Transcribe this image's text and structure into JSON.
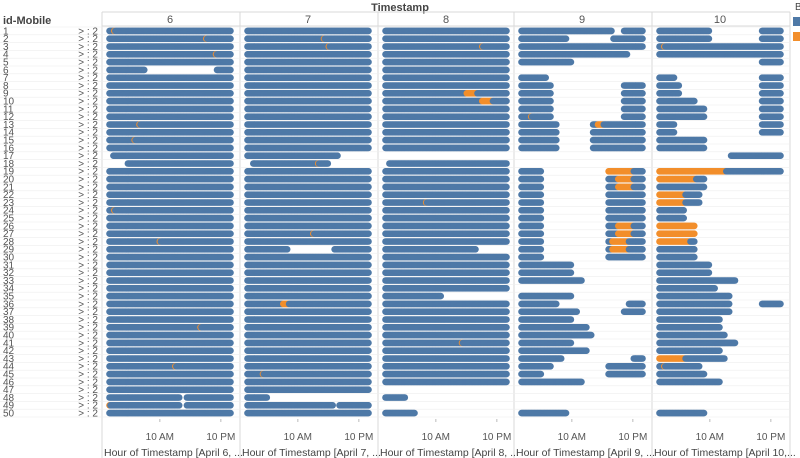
{
  "header": {
    "column_title": "Timestamp",
    "row_title": "id-Mobile"
  },
  "colors": {
    "normal": "#4e79a7",
    "alert": "#f28e2b",
    "grid": "#d9d9d9",
    "text": "#555555"
  },
  "legend": {
    "heading": "B",
    "items": [
      {
        "color": "#4e79a7",
        "icon": "legend-square-blue"
      },
      {
        "color": "#f28e2b",
        "icon": "legend-square-orange"
      }
    ]
  },
  "chart_data": {
    "type": "scatter",
    "title": "Timestamp",
    "row_label": "id-Mobile",
    "row_ids": [
      "1",
      "2",
      "3",
      "4",
      "5",
      "6",
      "7",
      "8",
      "9",
      "10",
      "11",
      "12",
      "13",
      "14",
      "15",
      "16",
      "17",
      "18",
      "19",
      "20",
      "21",
      "22",
      "23",
      "24",
      "25",
      "26",
      "27",
      "28",
      "29",
      "30",
      "31",
      "32",
      "33",
      "34",
      "35",
      "36",
      "37",
      "38",
      "39",
      "40",
      "41",
      "42",
      "43",
      "44",
      "45",
      "46",
      "47",
      "48",
      "49",
      "50"
    ],
    "row_suffix": "> : 2",
    "panels": [
      {
        "label": "6",
        "xlabel": "Hour of Timestamp [April 6, ..."
      },
      {
        "label": "7",
        "xlabel": "Hour of Timestamp [April 7, ..."
      },
      {
        "label": "8",
        "xlabel": "Hour of Timestamp [April 8, ..."
      },
      {
        "label": "9",
        "xlabel": "Hour of Timestamp [April 9, ..."
      },
      {
        "label": "10",
        "xlabel": "Hour of Timestamp [April 10,..."
      }
    ],
    "x_ticks": [
      {
        "hour": 10,
        "label": "10 AM"
      },
      {
        "hour": 22,
        "label": "10 PM"
      }
    ],
    "x_range": [
      0,
      24
    ],
    "series": [
      {
        "name": "",
        "color": "#4e79a7"
      },
      {
        "name": "",
        "color": "#f28e2b"
      }
    ],
    "gaps": [
      {
        "panel": 0,
        "row": 5,
        "from": 7,
        "to": 21
      },
      {
        "panel": 0,
        "row": 16,
        "from": 0,
        "to": 0.5
      },
      {
        "panel": 0,
        "row": 17,
        "from": 0,
        "to": 3.5
      },
      {
        "panel": 0,
        "row": 47,
        "from": 14,
        "to": 15
      },
      {
        "panel": 0,
        "row": 48,
        "from": 14,
        "to": 15
      },
      {
        "panel": 1,
        "row": 16,
        "from": 18,
        "to": 24
      },
      {
        "panel": 1,
        "row": 17,
        "from": 0,
        "to": 1
      },
      {
        "panel": 1,
        "row": 17,
        "from": 16,
        "to": 24
      },
      {
        "panel": 1,
        "row": 28,
        "from": 8,
        "to": 17
      },
      {
        "panel": 1,
        "row": 47,
        "from": 4,
        "to": 24
      },
      {
        "panel": 1,
        "row": 48,
        "from": 17,
        "to": 18
      },
      {
        "panel": 2,
        "row": 16,
        "from": 0,
        "to": 24
      },
      {
        "panel": 2,
        "row": 17,
        "from": 0,
        "to": 0.5
      },
      {
        "panel": 2,
        "row": 28,
        "from": 18,
        "to": 24
      },
      {
        "panel": 2,
        "row": 34,
        "from": 11,
        "to": 24
      },
      {
        "panel": 2,
        "row": 46,
        "from": 0,
        "to": 24
      },
      {
        "panel": 2,
        "row": 47,
        "from": 4,
        "to": 24
      },
      {
        "panel": 2,
        "row": 48,
        "from": 0,
        "to": 24
      },
      {
        "panel": 2,
        "row": 49,
        "from": 6,
        "to": 24
      },
      {
        "panel": 3,
        "row": 0,
        "from": 18,
        "to": 20
      },
      {
        "panel": 3,
        "row": 1,
        "from": 9,
        "to": 18
      },
      {
        "panel": 3,
        "row": 3,
        "from": 21,
        "to": 24
      },
      {
        "panel": 3,
        "row": 4,
        "from": 10,
        "to": 24
      },
      {
        "panel": 3,
        "row": 5,
        "from": 0,
        "to": 24
      },
      {
        "panel": 3,
        "row": 6,
        "from": 5,
        "to": 24
      },
      {
        "panel": 3,
        "row": 7,
        "from": 6,
        "to": 20
      },
      {
        "panel": 3,
        "row": 8,
        "from": 6,
        "to": 20
      },
      {
        "panel": 3,
        "row": 9,
        "from": 6,
        "to": 20
      },
      {
        "panel": 3,
        "row": 10,
        "from": 6,
        "to": 20
      },
      {
        "panel": 3,
        "row": 11,
        "from": 6,
        "to": 20
      },
      {
        "panel": 3,
        "row": 12,
        "from": 7,
        "to": 14
      },
      {
        "panel": 3,
        "row": 13,
        "from": 7,
        "to": 14
      },
      {
        "panel": 3,
        "row": 14,
        "from": 7,
        "to": 14
      },
      {
        "panel": 3,
        "row": 15,
        "from": 7,
        "to": 14
      },
      {
        "panel": 3,
        "row": 16,
        "from": 0,
        "to": 24
      },
      {
        "panel": 3,
        "row": 17,
        "from": 0,
        "to": 24
      },
      {
        "panel": 3,
        "row": 18,
        "from": 4,
        "to": 17
      },
      {
        "panel": 3,
        "row": 19,
        "from": 4,
        "to": 17
      },
      {
        "panel": 3,
        "row": 20,
        "from": 4,
        "to": 17
      },
      {
        "panel": 3,
        "row": 21,
        "from": 4,
        "to": 17
      },
      {
        "panel": 3,
        "row": 22,
        "from": 4,
        "to": 17
      },
      {
        "panel": 3,
        "row": 23,
        "from": 4,
        "to": 17
      },
      {
        "panel": 3,
        "row": 24,
        "from": 4,
        "to": 17
      },
      {
        "panel": 3,
        "row": 25,
        "from": 4,
        "to": 17
      },
      {
        "panel": 3,
        "row": 26,
        "from": 4,
        "to": 17
      },
      {
        "panel": 3,
        "row": 27,
        "from": 4,
        "to": 17
      },
      {
        "panel": 3,
        "row": 28,
        "from": 4,
        "to": 17
      },
      {
        "panel": 3,
        "row": 29,
        "from": 4,
        "to": 17
      },
      {
        "panel": 3,
        "row": 30,
        "from": 10,
        "to": 24
      },
      {
        "panel": 3,
        "row": 31,
        "from": 10,
        "to": 24
      },
      {
        "panel": 3,
        "row": 32,
        "from": 12,
        "to": 24
      },
      {
        "panel": 3,
        "row": 33,
        "from": 0,
        "to": 24
      },
      {
        "panel": 3,
        "row": 34,
        "from": 10,
        "to": 24
      },
      {
        "panel": 3,
        "row": 35,
        "from": 7,
        "to": 21
      },
      {
        "panel": 3,
        "row": 36,
        "from": 11,
        "to": 20
      },
      {
        "panel": 3,
        "row": 37,
        "from": 10,
        "to": 24
      },
      {
        "panel": 3,
        "row": 38,
        "from": 13,
        "to": 24
      },
      {
        "panel": 3,
        "row": 39,
        "from": 14,
        "to": 24
      },
      {
        "panel": 3,
        "row": 40,
        "from": 10,
        "to": 24
      },
      {
        "panel": 3,
        "row": 41,
        "from": 13,
        "to": 24
      },
      {
        "panel": 3,
        "row": 42,
        "from": 8,
        "to": 22
      },
      {
        "panel": 3,
        "row": 43,
        "from": 6,
        "to": 17
      },
      {
        "panel": 3,
        "row": 44,
        "from": 4,
        "to": 17
      },
      {
        "panel": 3,
        "row": 45,
        "from": 12,
        "to": 24
      },
      {
        "panel": 3,
        "row": 46,
        "from": 0,
        "to": 24
      },
      {
        "panel": 3,
        "row": 47,
        "from": 0,
        "to": 24
      },
      {
        "panel": 3,
        "row": 48,
        "from": 0,
        "to": 24
      },
      {
        "panel": 3,
        "row": 49,
        "from": 9,
        "to": 24
      },
      {
        "panel": 4,
        "row": 0,
        "from": 10,
        "to": 20
      },
      {
        "panel": 4,
        "row": 1,
        "from": 10,
        "to": 20
      },
      {
        "panel": 4,
        "row": 4,
        "from": 0,
        "to": 20
      },
      {
        "panel": 4,
        "row": 5,
        "from": 0,
        "to": 24
      },
      {
        "panel": 4,
        "row": 6,
        "from": 3,
        "to": 20
      },
      {
        "panel": 4,
        "row": 7,
        "from": 4,
        "to": 20
      },
      {
        "panel": 4,
        "row": 8,
        "from": 4,
        "to": 20
      },
      {
        "panel": 4,
        "row": 9,
        "from": 7,
        "to": 20
      },
      {
        "panel": 4,
        "row": 10,
        "from": 9,
        "to": 20
      },
      {
        "panel": 4,
        "row": 11,
        "from": 9,
        "to": 20
      },
      {
        "panel": 4,
        "row": 12,
        "from": 3,
        "to": 20
      },
      {
        "panel": 4,
        "row": 13,
        "from": 3,
        "to": 20
      },
      {
        "panel": 4,
        "row": 14,
        "from": 9,
        "to": 24
      },
      {
        "panel": 4,
        "row": 15,
        "from": 9,
        "to": 24
      },
      {
        "panel": 4,
        "row": 16,
        "from": 0,
        "to": 14
      },
      {
        "panel": 4,
        "row": 17,
        "from": 0,
        "to": 24
      },
      {
        "panel": 4,
        "row": 19,
        "from": 9,
        "to": 24
      },
      {
        "panel": 4,
        "row": 20,
        "from": 9,
        "to": 24
      },
      {
        "panel": 4,
        "row": 21,
        "from": 8,
        "to": 24
      },
      {
        "panel": 4,
        "row": 22,
        "from": 8,
        "to": 24
      },
      {
        "panel": 4,
        "row": 23,
        "from": 5,
        "to": 24
      },
      {
        "panel": 4,
        "row": 24,
        "from": 5,
        "to": 24
      },
      {
        "panel": 4,
        "row": 25,
        "from": 7,
        "to": 24
      },
      {
        "panel": 4,
        "row": 26,
        "from": 7,
        "to": 24
      },
      {
        "panel": 4,
        "row": 27,
        "from": 7,
        "to": 24
      },
      {
        "panel": 4,
        "row": 28,
        "from": 7,
        "to": 24
      },
      {
        "panel": 4,
        "row": 29,
        "from": 7,
        "to": 24
      },
      {
        "panel": 4,
        "row": 30,
        "from": 10,
        "to": 24
      },
      {
        "panel": 4,
        "row": 31,
        "from": 10,
        "to": 24
      },
      {
        "panel": 4,
        "row": 32,
        "from": 15,
        "to": 24
      },
      {
        "panel": 4,
        "row": 33,
        "from": 11,
        "to": 24
      },
      {
        "panel": 4,
        "row": 34,
        "from": 14,
        "to": 24
      },
      {
        "panel": 4,
        "row": 35,
        "from": 14,
        "to": 20
      },
      {
        "panel": 4,
        "row": 36,
        "from": 14,
        "to": 24
      },
      {
        "panel": 4,
        "row": 37,
        "from": 12,
        "to": 24
      },
      {
        "panel": 4,
        "row": 38,
        "from": 12,
        "to": 24
      },
      {
        "panel": 4,
        "row": 39,
        "from": 13,
        "to": 24
      },
      {
        "panel": 4,
        "row": 40,
        "from": 15,
        "to": 24
      },
      {
        "panel": 4,
        "row": 41,
        "from": 12,
        "to": 24
      },
      {
        "panel": 4,
        "row": 42,
        "from": 13,
        "to": 24
      },
      {
        "panel": 4,
        "row": 43,
        "from": 8,
        "to": 24
      },
      {
        "panel": 4,
        "row": 44,
        "from": 9,
        "to": 24
      },
      {
        "panel": 4,
        "row": 45,
        "from": 12,
        "to": 24
      },
      {
        "panel": 4,
        "row": 46,
        "from": 0,
        "to": 24
      },
      {
        "panel": 4,
        "row": 47,
        "from": 0,
        "to": 24
      },
      {
        "panel": 4,
        "row": 48,
        "from": 0,
        "to": 24
      },
      {
        "panel": 4,
        "row": 49,
        "from": 9,
        "to": 24
      }
    ],
    "alerts": [
      {
        "panel": 0,
        "row": 0,
        "from": 1,
        "to": 1
      },
      {
        "panel": 0,
        "row": 1,
        "from": 19,
        "to": 19
      },
      {
        "panel": 0,
        "row": 3,
        "from": 21,
        "to": 21
      },
      {
        "panel": 0,
        "row": 12,
        "from": 6,
        "to": 6
      },
      {
        "panel": 0,
        "row": 14,
        "from": 5,
        "to": 5
      },
      {
        "panel": 0,
        "row": 17,
        "from": 1,
        "to": 1
      },
      {
        "panel": 0,
        "row": 23,
        "from": 1,
        "to": 1
      },
      {
        "panel": 0,
        "row": 27,
        "from": 10,
        "to": 10
      },
      {
        "panel": 0,
        "row": 38,
        "from": 18,
        "to": 18
      },
      {
        "panel": 0,
        "row": 43,
        "from": 13,
        "to": 13
      },
      {
        "panel": 0,
        "row": 48,
        "from": 0,
        "to": 0
      },
      {
        "panel": 1,
        "row": 1,
        "from": 15,
        "to": 15
      },
      {
        "panel": 1,
        "row": 2,
        "from": 16,
        "to": 16
      },
      {
        "panel": 1,
        "row": 17,
        "from": 14,
        "to": 14
      },
      {
        "panel": 1,
        "row": 26,
        "from": 13,
        "to": 13
      },
      {
        "panel": 1,
        "row": 35,
        "from": 7,
        "to": 8
      },
      {
        "panel": 1,
        "row": 44,
        "from": 3,
        "to": 3
      },
      {
        "panel": 2,
        "row": 2,
        "from": 19,
        "to": 19
      },
      {
        "panel": 2,
        "row": 8,
        "from": 16,
        "to": 18
      },
      {
        "panel": 2,
        "row": 9,
        "from": 19,
        "to": 21
      },
      {
        "panel": 2,
        "row": 22,
        "from": 8,
        "to": 8
      },
      {
        "panel": 2,
        "row": 40,
        "from": 15,
        "to": 15
      },
      {
        "panel": 2,
        "row": 48,
        "from": 5,
        "to": 5
      },
      {
        "panel": 3,
        "row": 1,
        "from": 18,
        "to": 18
      },
      {
        "panel": 3,
        "row": 11,
        "from": 2,
        "to": 2
      },
      {
        "panel": 3,
        "row": 12,
        "from": 15,
        "to": 16
      },
      {
        "panel": 3,
        "row": 18,
        "from": 14,
        "to": 22
      },
      {
        "panel": 3,
        "row": 19,
        "from": 19,
        "to": 22
      },
      {
        "panel": 3,
        "row": 20,
        "from": 19,
        "to": 22
      },
      {
        "panel": 3,
        "row": 25,
        "from": 19,
        "to": 22
      },
      {
        "panel": 3,
        "row": 26,
        "from": 19,
        "to": 22
      },
      {
        "panel": 3,
        "row": 27,
        "from": 18,
        "to": 21
      },
      {
        "panel": 3,
        "row": 28,
        "from": 18,
        "to": 21
      },
      {
        "panel": 3,
        "row": 42,
        "from": 19,
        "to": 22
      },
      {
        "panel": 4,
        "row": 2,
        "from": 1,
        "to": 1
      },
      {
        "panel": 4,
        "row": 18,
        "from": 0,
        "to": 13
      },
      {
        "panel": 4,
        "row": 19,
        "from": 0,
        "to": 7
      },
      {
        "panel": 4,
        "row": 21,
        "from": 0,
        "to": 5
      },
      {
        "panel": 4,
        "row": 22,
        "from": 0,
        "to": 5
      },
      {
        "panel": 4,
        "row": 25,
        "from": 0,
        "to": 7
      },
      {
        "panel": 4,
        "row": 26,
        "from": 0,
        "to": 7
      },
      {
        "panel": 4,
        "row": 27,
        "from": 0,
        "to": 6
      },
      {
        "panel": 4,
        "row": 42,
        "from": 0,
        "to": 5
      },
      {
        "panel": 4,
        "row": 43,
        "from": 1,
        "to": 1
      }
    ]
  }
}
